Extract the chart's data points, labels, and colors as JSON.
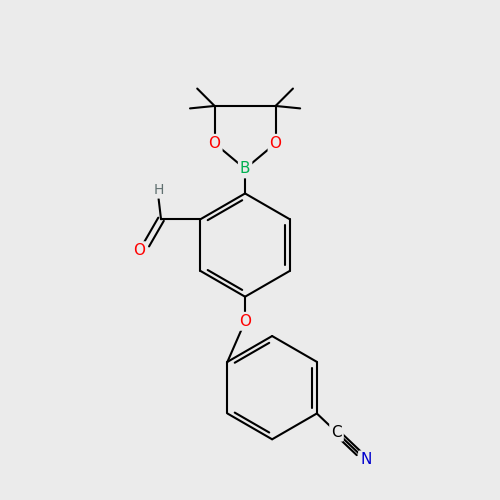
{
  "background_color": "#ebebeb",
  "bond_color": "#000000",
  "bond_width": 1.5,
  "atom_colors": {
    "B": "#00b050",
    "O": "#ff0000",
    "N": "#0000cd",
    "H_label": "#607070",
    "C_label": "#000000"
  },
  "font_size_atom": 11,
  "font_size_methyl": 9
}
